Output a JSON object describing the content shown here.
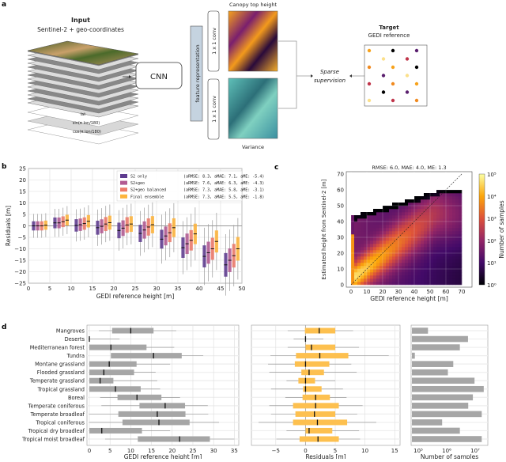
{
  "panel_labels": {
    "a": "a",
    "b": "b",
    "c": "c",
    "d": "d"
  },
  "diagram": {
    "input_title": "Input",
    "input_subtitle": "Sentinel-2 + geo-coordinates",
    "layers": [
      "lat",
      "sin(π lon/180)",
      "cos(π lon/180)"
    ],
    "cnn": "CNN",
    "feature": "feature representation",
    "conv_top": "1 x 1 conv",
    "conv_bottom": "1 x 1 conv",
    "canopy_title": "Canopy top height",
    "variance_title": "Variance",
    "sparse_1": "Sparse",
    "sparse_2": "supervision",
    "target_title": "Target",
    "target_subtitle": "GEDI reference",
    "colors": {
      "layer_box": "#c5d3e0",
      "canopy": "#f7a21b",
      "variance": "#4fb0b0"
    }
  },
  "chart_data": [
    {
      "id": "b",
      "type": "box",
      "xlabel": "GEDI reference height [m]",
      "ylabel": "Residuals [m]",
      "xlim": [
        0,
        50
      ],
      "ylim": [
        -25,
        25
      ],
      "xticks": [
        0,
        5,
        10,
        15,
        20,
        25,
        30,
        35,
        40,
        45,
        50
      ],
      "yticks": [
        -25,
        -20,
        -15,
        -10,
        -5,
        0,
        5,
        10,
        15,
        20,
        25
      ],
      "grid": true,
      "legend_position": "top-right",
      "bins": [
        "0-5",
        "5-10",
        "10-15",
        "15-20",
        "20-25",
        "25-30",
        "30-35",
        "35-40",
        "40-45",
        "45-50"
      ],
      "series": [
        {
          "name": "S2 only",
          "stats": "(aRMSE: 8.3, aMAE: 7.1, aME: -5.4)",
          "color": "#5e3c8f",
          "median": [
            0,
            1.3,
            0.2,
            -0.8,
            -2,
            -3.3,
            -5.8,
            -9.5,
            -13.3,
            -17
          ]
        },
        {
          "name": "S2+geo",
          "stats": "(aRMSE: 7.6, aMAE: 6.3, aME: -4.3)",
          "color": "#b25a92",
          "median": [
            0,
            1.3,
            0.5,
            -0.2,
            -1,
            -1.8,
            -4.4,
            -7.8,
            -11.7,
            -15
          ]
        },
        {
          "name": "S2+geo balanced",
          "stats": "(aRMSE: 7.3, aMAE: 5.8, aME: -3.1)",
          "color": "#ec7a6a",
          "median": [
            0,
            1.8,
            1,
            0.8,
            0.4,
            -0.5,
            -3,
            -6.3,
            -10,
            -13
          ]
        },
        {
          "name": "Final ensemble",
          "stats": "(aRMSE: 7.3, aMAE: 5.5, aME: -1.8)",
          "color": "#fdb43c",
          "median": [
            0.3,
            2.5,
            2,
            1.4,
            0.8,
            0.5,
            -0.8,
            -3.5,
            -6.8,
            -10
          ]
        }
      ]
    },
    {
      "id": "c",
      "type": "heatmap",
      "title": "RMSE: 6.0, MAE: 4.0, ME: 1.3",
      "xlabel": "GEDI reference height [m]",
      "ylabel": "Estimated height from Sentinel-2 [m]",
      "xlim": [
        0,
        70
      ],
      "ylim": [
        0,
        70
      ],
      "xticks": [
        0,
        10,
        20,
        30,
        40,
        50,
        60,
        70
      ],
      "yticks": [
        0,
        10,
        20,
        30,
        40,
        50,
        60,
        70
      ],
      "colorbar_label": "Number of samples",
      "colorbar_scale": "log",
      "colorbar_ticks": [
        "10⁰",
        "10¹",
        "10²",
        "10³",
        "10⁴",
        "10⁵"
      ],
      "colormap": "inferno",
      "identity_line": true,
      "grid": true
    },
    {
      "id": "d-height",
      "type": "box",
      "orientation": "horizontal",
      "xlabel": "GEDI reference height [m]",
      "xlim": [
        0,
        35
      ],
      "xticks": [
        0,
        5,
        10,
        15,
        20,
        25,
        30,
        35
      ],
      "color": "#a6a6a6",
      "categories": [
        "Mangroves",
        "Deserts",
        "Mediterranean forest",
        "Tundra",
        "Montane grassland",
        "Flooded grassland",
        "Temperate grassland",
        "Tropical grassland",
        "Boreal",
        "Temperate coniferous",
        "Temperate broadleaf",
        "Tropical coniferous",
        "Tropical dry broadleaf",
        "Tropical moist broadleaf"
      ],
      "whisker_low": [
        2.3,
        0,
        0,
        5.2,
        0,
        0,
        0,
        0,
        2.6,
        2.9,
        0,
        0,
        0,
        3.8
      ],
      "q1": [
        5.5,
        0,
        0,
        5.2,
        0,
        0,
        0,
        0,
        6.8,
        12.1,
        7,
        8,
        0,
        11.7
      ],
      "median": [
        10,
        0,
        5.2,
        15.5,
        4.8,
        3.5,
        2.6,
        6.3,
        11.5,
        18.3,
        16.4,
        16.8,
        3,
        21.8
      ],
      "q3": [
        15.5,
        0,
        13.8,
        22.3,
        11.4,
        10.8,
        5.8,
        12.4,
        17.4,
        23.1,
        23.2,
        24.2,
        12.7,
        29.1
      ],
      "whisker_high": [
        21,
        7.3,
        20.5,
        27.5,
        19.5,
        16,
        16.4,
        17.1,
        21.9,
        28.6,
        28.7,
        31.3,
        19.5,
        35
      ]
    },
    {
      "id": "d-residuals",
      "type": "box",
      "orientation": "horizontal",
      "xlabel": "Residuals [m]",
      "xlim": [
        -8.5,
        15
      ],
      "xticks": [
        -5,
        0,
        5,
        10,
        15
      ],
      "color": "#fdc04f",
      "whisker_low": [
        -3,
        -2,
        -3,
        -5.9,
        -6.3,
        -6.1,
        -3.2,
        -5.8,
        -3.4,
        -6.1,
        -5.8,
        -7.9,
        -3.2,
        -4.9
      ],
      "q1": [
        -0.1,
        0,
        0,
        -1.6,
        -1.8,
        -0.7,
        -1.2,
        -0.4,
        -0.5,
        -2.1,
        -1.7,
        -2.1,
        0,
        -1
      ],
      "median": [
        2.3,
        0,
        1,
        2.4,
        0,
        0.6,
        0,
        0,
        1.7,
        1.7,
        1.5,
        2,
        0.6,
        2.1
      ],
      "q3": [
        5,
        0,
        5,
        7.2,
        4,
        3.1,
        1.6,
        2.7,
        4.1,
        5.6,
        5,
        7,
        4.5,
        5.6
      ],
      "whisker_high": [
        8,
        3,
        9,
        14,
        7.7,
        8.6,
        5,
        6.3,
        6.9,
        9.6,
        8.7,
        11.9,
        9,
        9.2
      ]
    },
    {
      "id": "d-samples",
      "type": "bar",
      "orientation": "horizontal",
      "xlabel": "Number of samples",
      "xscale": "log",
      "xticks": [
        "10⁵",
        "10⁶",
        "10⁷"
      ],
      "color": "#a6a6a6",
      "values": [
        220000,
        5600000,
        2900000,
        76000,
        1700000,
        1100000,
        9500000,
        20000000,
        8300000,
        5700000,
        17000000,
        690000,
        2900000,
        17000000
      ]
    }
  ]
}
